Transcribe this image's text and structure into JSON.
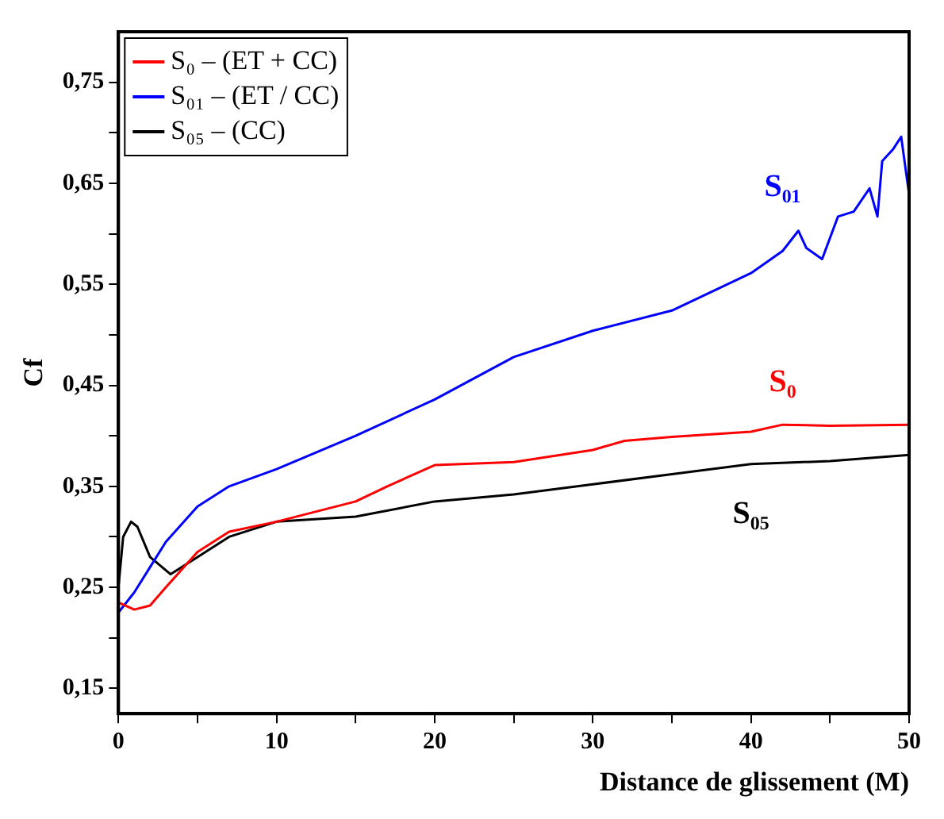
{
  "chart_data": {
    "type": "line",
    "xlabel": "Distance de glissement (M)",
    "ylabel": "Cf",
    "xlim": [
      0,
      50
    ],
    "ylim": [
      0.125,
      0.8
    ],
    "xticks": [
      0,
      {
        "value": 5,
        "label": null
      },
      10,
      {
        "value": 15,
        "label": null
      },
      20,
      {
        "value": 25,
        "label": null
      },
      30,
      {
        "value": 35,
        "label": null
      },
      40,
      {
        "value": 45,
        "label": null
      },
      50
    ],
    "yticks": [
      {
        "value": 0.15,
        "label": "0,15"
      },
      {
        "value": 0.2,
        "label": null
      },
      {
        "value": 0.25,
        "label": "0,25"
      },
      {
        "value": 0.3,
        "label": null
      },
      {
        "value": 0.35,
        "label": "0,35"
      },
      {
        "value": 0.4,
        "label": null
      },
      {
        "value": 0.45,
        "label": "0,45"
      },
      {
        "value": 0.5,
        "label": null
      },
      {
        "value": 0.55,
        "label": "0,55"
      },
      {
        "value": 0.6,
        "label": null
      },
      {
        "value": 0.65,
        "label": "0,65"
      },
      {
        "value": 0.7,
        "label": null
      },
      {
        "value": 0.75,
        "label": "0,75"
      }
    ],
    "grid": false,
    "legend": "top left",
    "marker": "none",
    "line_style": "solid",
    "series": [
      {
        "name": "S₀ – (ET + CC)",
        "color": "#ff0000",
        "x": [
          0,
          1,
          2,
          3,
          5,
          7,
          10,
          15,
          17,
          20,
          25,
          30,
          32,
          35,
          40,
          42,
          45,
          50
        ],
        "values": [
          0.235,
          0.228,
          0.232,
          0.25,
          0.285,
          0.305,
          0.315,
          0.335,
          0.35,
          0.371,
          0.374,
          0.386,
          0.395,
          0.399,
          0.404,
          0.411,
          0.41,
          0.411
        ]
      },
      {
        "name": "S₀₁ – (ET / CC)",
        "color": "#0000ff",
        "x": [
          0,
          1,
          2,
          3,
          5,
          7,
          10,
          15,
          20,
          25,
          30,
          35,
          40,
          42,
          43,
          43.5,
          44.5,
          45.5,
          46.5,
          47.5,
          48,
          48.3,
          49,
          49.5,
          50
        ],
        "values": [
          0.225,
          0.245,
          0.27,
          0.295,
          0.33,
          0.35,
          0.367,
          0.4,
          0.436,
          0.478,
          0.504,
          0.524,
          0.561,
          0.583,
          0.603,
          0.586,
          0.575,
          0.617,
          0.622,
          0.645,
          0.617,
          0.672,
          0.684,
          0.696,
          0.639
        ]
      },
      {
        "name": "S₀₅ – (CC)",
        "color": "#000000",
        "x": [
          0,
          0.3,
          0.8,
          1.2,
          2,
          3.3,
          5,
          7,
          10,
          15,
          20,
          25,
          30,
          35,
          40,
          45,
          50
        ],
        "values": [
          0.25,
          0.3,
          0.315,
          0.31,
          0.28,
          0.263,
          0.28,
          0.3,
          0.315,
          0.32,
          0.335,
          0.342,
          0.352,
          0.362,
          0.372,
          0.375,
          0.381
        ]
      }
    ],
    "annotations": [
      "S₀",
      "S₀₁",
      "S₀₅"
    ]
  }
}
